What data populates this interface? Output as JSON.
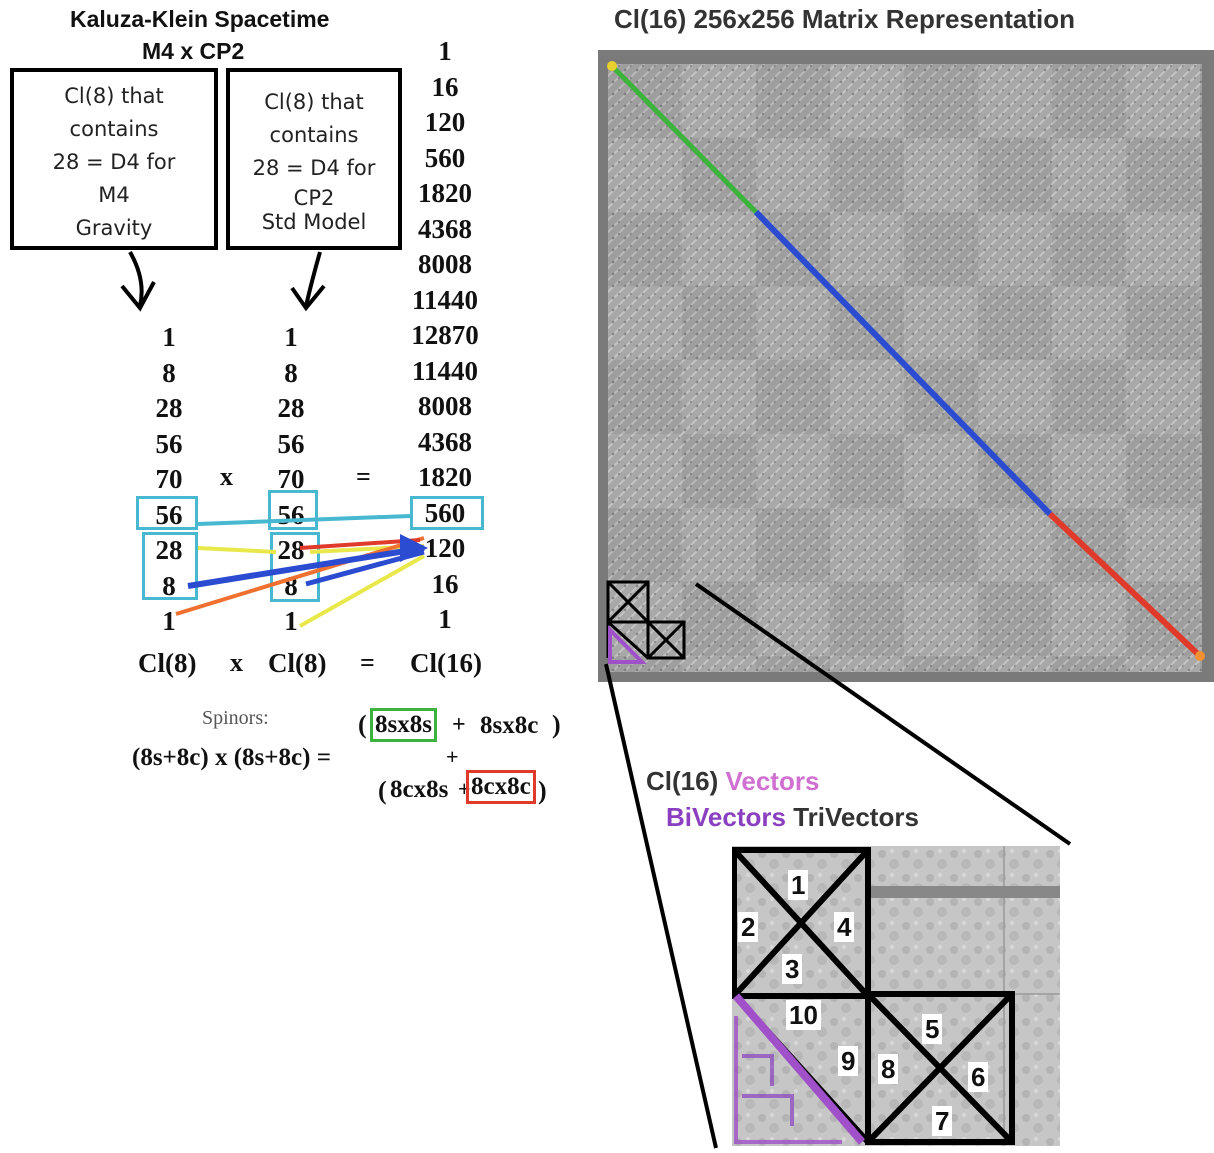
{
  "left": {
    "title": "Kaluza-Klein Spacetime",
    "subtitle": "M4 x CP2",
    "box1": [
      "Cl(8) that",
      "contains",
      "28 = D4 for",
      "M4",
      "Gravity"
    ],
    "box2": [
      "Cl(8) that",
      "contains",
      "28 = D4 for",
      "CP2",
      "Std Model"
    ],
    "cl16_grades": [
      "1",
      "16",
      "120",
      "560",
      "1820",
      "4368",
      "8008",
      "11440",
      "12870",
      "11440",
      "8008",
      "4368",
      "1820",
      "560",
      "120",
      "16",
      "1"
    ],
    "cl8_a": [
      "1",
      "8",
      "28",
      "56",
      "70",
      "56",
      "28",
      "8",
      "1"
    ],
    "cl8_b": [
      "1",
      "8",
      "28",
      "56",
      "70",
      "56",
      "28",
      "8",
      "1"
    ],
    "times": "x",
    "equals": "=",
    "bottom": {
      "a": "Cl(8)",
      "x": "x",
      "b": "Cl(8)",
      "eq": "=",
      "c": "Cl(16)"
    },
    "spinors": {
      "label": "Spinors:",
      "lhs": "(8s+8c) x (8s+8c) =",
      "open": "(",
      "t1": "8sx8s",
      "plus1": "+",
      "t2": "8sx8c",
      "close": ")",
      "plus_mid": "+",
      "open2": "(",
      "t3": "8cx8s",
      "plus2": "+",
      "t4": "8cx8c",
      "close2": ")"
    }
  },
  "right": {
    "title": "Cl(16) 256x256 Matrix Representation",
    "legend_vectors": "Cl(16) Vectors",
    "legend_vectors_prefix": "Cl(16)",
    "legend_vectors_word": "Vectors",
    "legend_bivectors": "BiVectors",
    "legend_trivectors": "TriVectors",
    "cells": [
      "1",
      "2",
      "3",
      "4",
      "5",
      "6",
      "7",
      "8",
      "9",
      "10"
    ]
  },
  "colors": {
    "cyan": "#48b8d0",
    "green": "#3cb43c",
    "blue": "#2b4bd0",
    "red": "#e03a2a",
    "yellow": "#e8e84a",
    "orange": "#f07030",
    "purple": "#a050c8",
    "matrix_gray": "#9a9a9a"
  }
}
